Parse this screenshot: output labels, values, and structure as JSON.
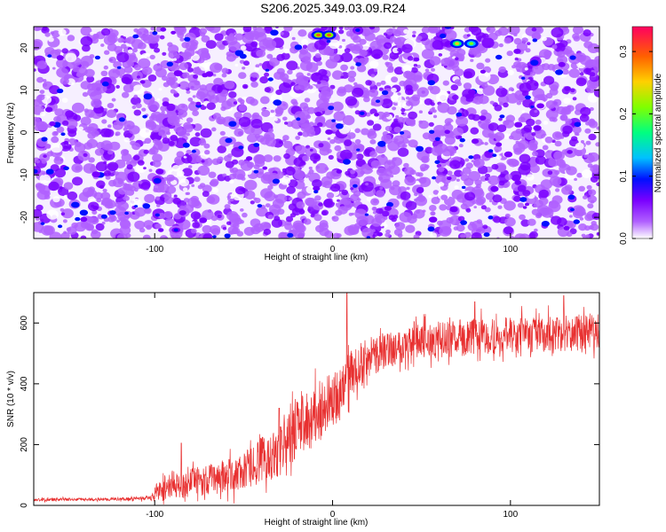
{
  "title": "S206.2025.349.03.09.R24",
  "chart_data": [
    {
      "type": "heatmap",
      "xlabel": "Height of straight line (km)",
      "ylabel": "Frequency (Hz)",
      "xlim": [
        -168,
        150
      ],
      "ylim": [
        -25,
        25
      ],
      "xticks": [
        -100,
        0,
        100
      ],
      "xtick_labels": [
        "-100",
        "0",
        "100"
      ],
      "yticks": [
        -20,
        -10,
        0,
        10,
        20
      ],
      "ytick_labels": [
        "-20",
        "-10",
        "0",
        "10",
        "20"
      ],
      "colorbar": {
        "label": "Normalized spectral amplitude",
        "lim": [
          0,
          0.34
        ],
        "ticks": [
          0.0,
          0.1,
          0.2,
          0.3
        ],
        "tick_labels": [
          "0.0",
          "0.1",
          "0.2",
          "0.3"
        ],
        "colormap": [
          "#ffffff",
          "#b060ff",
          "#7a00ff",
          "#0010ff",
          "#00c0ff",
          "#00ff80",
          "#80ff00",
          "#ffd000",
          "#ff6000",
          "#ff0060"
        ]
      },
      "description_stats": {
        "typical_value": 0.05,
        "hotspots": [
          [
            -88,
            -23,
            0.12
          ],
          [
            -8,
            23,
            0.32
          ],
          [
            -2,
            23,
            0.3
          ],
          [
            70,
            21,
            0.28
          ],
          [
            78,
            21,
            0.24
          ]
        ]
      }
    },
    {
      "type": "line",
      "xlabel": "Height of straight line (km)",
      "ylabel": "SNR (10 * v/v)",
      "xlim": [
        -168,
        150
      ],
      "ylim": [
        0,
        700
      ],
      "xticks": [
        -100,
        0,
        100
      ],
      "xtick_labels": [
        "-100",
        "0",
        "100"
      ],
      "yticks": [
        0,
        200,
        400,
        600
      ],
      "ytick_labels": [
        "0",
        "200",
        "400",
        "600"
      ],
      "color": "#e83030",
      "series": [
        {
          "name": "SNR",
          "x": [
            -168,
            -150,
            -130,
            -110,
            -102,
            -100,
            -95,
            -90,
            -85,
            -80,
            -75,
            -70,
            -65,
            -60,
            -55,
            -50,
            -45,
            -40,
            -35,
            -30,
            -25,
            -20,
            -18,
            -15,
            -12,
            -10,
            -8,
            -5,
            0,
            3,
            5,
            7,
            10,
            15,
            20,
            25,
            30,
            35,
            40,
            45,
            50,
            60,
            70,
            80,
            90,
            100,
            110,
            120,
            130,
            140,
            150
          ],
          "values": [
            18,
            20,
            20,
            22,
            24,
            40,
            55,
            70,
            60,
            75,
            80,
            85,
            90,
            95,
            100,
            110,
            130,
            150,
            160,
            180,
            210,
            250,
            270,
            260,
            280,
            300,
            310,
            330,
            345,
            355,
            380,
            400,
            430,
            460,
            480,
            500,
            510,
            520,
            530,
            535,
            540,
            545,
            550,
            555,
            555,
            560,
            560,
            565,
            565,
            570,
            575
          ],
          "noise": [
            5,
            5,
            5,
            6,
            8,
            30,
            40,
            45,
            40,
            45,
            50,
            50,
            55,
            55,
            60,
            60,
            70,
            75,
            80,
            85,
            90,
            95,
            95,
            95,
            95,
            95,
            95,
            95,
            90,
            90,
            90,
            85,
            80,
            75,
            70,
            65,
            60,
            60,
            60,
            60,
            60,
            60,
            60,
            60,
            60,
            60,
            60,
            60,
            60,
            60,
            60
          ],
          "peaks": [
            [
              -85,
              205
            ],
            [
              -30,
              320
            ],
            [
              -20,
              340
            ],
            [
              8,
              700
            ],
            [
              80,
              670
            ],
            [
              130,
              690
            ]
          ]
        }
      ]
    }
  ]
}
